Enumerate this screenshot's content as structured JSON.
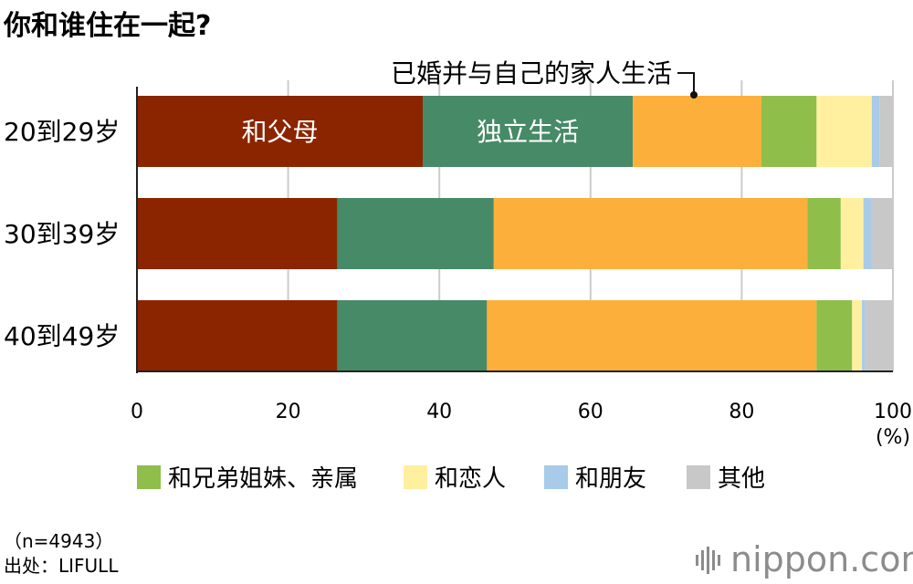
{
  "chart_data": {
    "type": "bar",
    "orientation": "horizontal",
    "stacked": true,
    "title": "你和谁住在一起?",
    "categories": [
      "20到29岁",
      "30到39岁",
      "40到49岁"
    ],
    "series": [
      {
        "name": "和父母",
        "color": "#8b2500",
        "values": [
          37.8,
          26.5,
          26.5
        ]
      },
      {
        "name": "独立生活",
        "color": "#468a67",
        "values": [
          27.8,
          20.7,
          19.8
        ]
      },
      {
        "name": "已婚并与自己的家人生活",
        "color": "#fdaf3b",
        "values": [
          17.0,
          41.5,
          43.6
        ]
      },
      {
        "name": "和兄弟姐妹、亲属",
        "color": "#8fbe4a",
        "values": [
          7.3,
          4.4,
          4.7
        ]
      },
      {
        "name": "和恋人",
        "color": "#fff0a0",
        "values": [
          7.3,
          3.0,
          1.3
        ]
      },
      {
        "name": "和朋友",
        "color": "#a7cbe8",
        "values": [
          1.0,
          1.0,
          0.4
        ]
      },
      {
        "name": "其他",
        "color": "#c8c8c8",
        "values": [
          1.8,
          2.9,
          3.7
        ]
      }
    ],
    "x_ticks": [
      0,
      20,
      40,
      60,
      80,
      100
    ],
    "xlim": [
      0,
      100
    ],
    "unit": "(%)",
    "grid": true,
    "legend_position": "bottom"
  },
  "notes": {
    "sample": "（n=4943）",
    "source": "出处：LIFULL"
  },
  "brand": {
    "logo_text": "nippon.com"
  }
}
